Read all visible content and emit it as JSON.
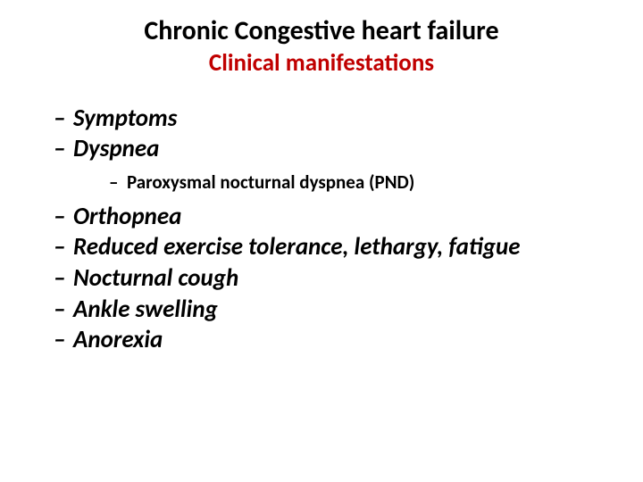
{
  "title": "Chronic Congestive heart failure",
  "subtitle": "Clinical manifestations",
  "colors": {
    "text": "#000000",
    "accent": "#c00000",
    "background": "#ffffff"
  },
  "dash": "–",
  "items": {
    "symptoms": "Symptoms",
    "dyspnea": "Dyspnea",
    "pnd": "Paroxysmal nocturnal dyspnea (PND)",
    "orthopnea": "Orthopnea",
    "reduced": "Reduced exercise tolerance, lethargy, fatigue",
    "cough": "Nocturnal cough",
    "ankle": "Ankle swelling",
    "anorexia": "Anorexia"
  }
}
